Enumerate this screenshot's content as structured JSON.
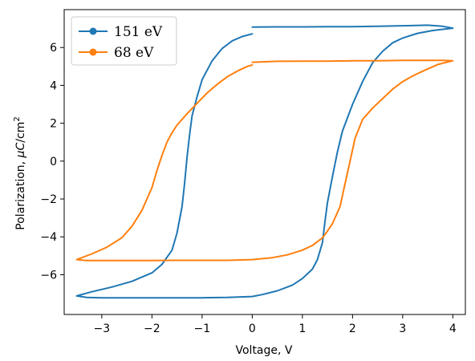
{
  "chart_data": {
    "type": "line",
    "xlabel": "Voltage, V",
    "ylabel_prefix": "Polarization, ",
    "ylabel_mu": "μ",
    "ylabel_c": "C",
    "ylabel_unit": "/cm",
    "ylabel_sup": "2",
    "xlim": [
      -3.75,
      4.25
    ],
    "ylim": [
      -8.1,
      8.0
    ],
    "xticks": [
      -3,
      -2,
      -1,
      0,
      1,
      2,
      3,
      4
    ],
    "yticks": [
      -6,
      -4,
      -2,
      0,
      2,
      4,
      6
    ],
    "xtick_labels": [
      "−3",
      "−2",
      "−1",
      "0",
      "1",
      "2",
      "3",
      "4"
    ],
    "ytick_labels": [
      "−6",
      "−4",
      "−2",
      "0",
      "2",
      "4",
      "6"
    ],
    "grid": false,
    "legend_position": "top-left",
    "series": [
      {
        "name": "151 eV",
        "color": "#1f77b4",
        "points": [
          [
            0.0,
            7.08
          ],
          [
            0.5,
            7.09
          ],
          [
            1.0,
            7.09
          ],
          [
            1.5,
            7.1
          ],
          [
            2.0,
            7.1
          ],
          [
            2.5,
            7.12
          ],
          [
            3.0,
            7.15
          ],
          [
            3.5,
            7.18
          ],
          [
            3.8,
            7.12
          ],
          [
            4.0,
            7.02
          ],
          [
            3.6,
            6.9
          ],
          [
            3.3,
            6.75
          ],
          [
            3.0,
            6.5
          ],
          [
            2.8,
            6.25
          ],
          [
            2.6,
            5.8
          ],
          [
            2.4,
            5.2
          ],
          [
            2.2,
            4.2
          ],
          [
            2.0,
            3.0
          ],
          [
            1.8,
            1.6
          ],
          [
            1.7,
            0.5
          ],
          [
            1.6,
            -0.8
          ],
          [
            1.5,
            -2.2
          ],
          [
            1.45,
            -3.2
          ],
          [
            1.4,
            -4.3
          ],
          [
            1.3,
            -5.2
          ],
          [
            1.2,
            -5.7
          ],
          [
            1.0,
            -6.2
          ],
          [
            0.8,
            -6.55
          ],
          [
            0.5,
            -6.85
          ],
          [
            0.2,
            -7.05
          ],
          [
            0.0,
            -7.15
          ],
          [
            -0.5,
            -7.2
          ],
          [
            -1.0,
            -7.22
          ],
          [
            -1.5,
            -7.22
          ],
          [
            -2.0,
            -7.22
          ],
          [
            -2.5,
            -7.22
          ],
          [
            -3.0,
            -7.22
          ],
          [
            -3.3,
            -7.2
          ],
          [
            -3.5,
            -7.12
          ],
          [
            -3.2,
            -6.9
          ],
          [
            -2.8,
            -6.65
          ],
          [
            -2.4,
            -6.35
          ],
          [
            -2.0,
            -5.9
          ],
          [
            -1.8,
            -5.45
          ],
          [
            -1.6,
            -4.7
          ],
          [
            -1.5,
            -3.8
          ],
          [
            -1.4,
            -2.4
          ],
          [
            -1.35,
            -1.2
          ],
          [
            -1.3,
            0.2
          ],
          [
            -1.25,
            1.4
          ],
          [
            -1.2,
            2.4
          ],
          [
            -1.1,
            3.4
          ],
          [
            -1.0,
            4.3
          ],
          [
            -0.8,
            5.3
          ],
          [
            -0.6,
            5.95
          ],
          [
            -0.4,
            6.35
          ],
          [
            -0.2,
            6.58
          ],
          [
            0.0,
            6.72
          ]
        ]
      },
      {
        "name": "68 eV",
        "color": "#ff7f0e",
        "points": [
          [
            0.0,
            5.22
          ],
          [
            0.5,
            5.27
          ],
          [
            1.0,
            5.28
          ],
          [
            1.5,
            5.28
          ],
          [
            2.0,
            5.3
          ],
          [
            2.5,
            5.3
          ],
          [
            3.0,
            5.32
          ],
          [
            3.5,
            5.32
          ],
          [
            3.8,
            5.32
          ],
          [
            4.0,
            5.3
          ],
          [
            3.7,
            5.1
          ],
          [
            3.4,
            4.75
          ],
          [
            3.2,
            4.5
          ],
          [
            3.0,
            4.2
          ],
          [
            2.8,
            3.8
          ],
          [
            2.6,
            3.3
          ],
          [
            2.4,
            2.8
          ],
          [
            2.2,
            2.2
          ],
          [
            2.05,
            1.2
          ],
          [
            1.95,
            0.0
          ],
          [
            1.85,
            -1.2
          ],
          [
            1.75,
            -2.4
          ],
          [
            1.6,
            -3.3
          ],
          [
            1.5,
            -3.7
          ],
          [
            1.4,
            -4.05
          ],
          [
            1.2,
            -4.45
          ],
          [
            1.0,
            -4.7
          ],
          [
            0.7,
            -4.95
          ],
          [
            0.4,
            -5.1
          ],
          [
            0.0,
            -5.2
          ],
          [
            -0.5,
            -5.24
          ],
          [
            -1.0,
            -5.24
          ],
          [
            -1.5,
            -5.24
          ],
          [
            -2.0,
            -5.25
          ],
          [
            -2.5,
            -5.25
          ],
          [
            -3.0,
            -5.25
          ],
          [
            -3.3,
            -5.25
          ],
          [
            -3.5,
            -5.2
          ],
          [
            -3.2,
            -4.9
          ],
          [
            -2.9,
            -4.55
          ],
          [
            -2.6,
            -4.05
          ],
          [
            -2.4,
            -3.45
          ],
          [
            -2.2,
            -2.6
          ],
          [
            -2.0,
            -1.4
          ],
          [
            -1.9,
            -0.5
          ],
          [
            -1.8,
            0.3
          ],
          [
            -1.7,
            1.0
          ],
          [
            -1.6,
            1.5
          ],
          [
            -1.5,
            1.9
          ],
          [
            -1.3,
            2.5
          ],
          [
            -1.1,
            3.05
          ],
          [
            -0.9,
            3.6
          ],
          [
            -0.7,
            4.05
          ],
          [
            -0.5,
            4.45
          ],
          [
            -0.3,
            4.75
          ],
          [
            -0.1,
            5.0
          ],
          [
            0.0,
            5.08
          ]
        ]
      }
    ]
  }
}
